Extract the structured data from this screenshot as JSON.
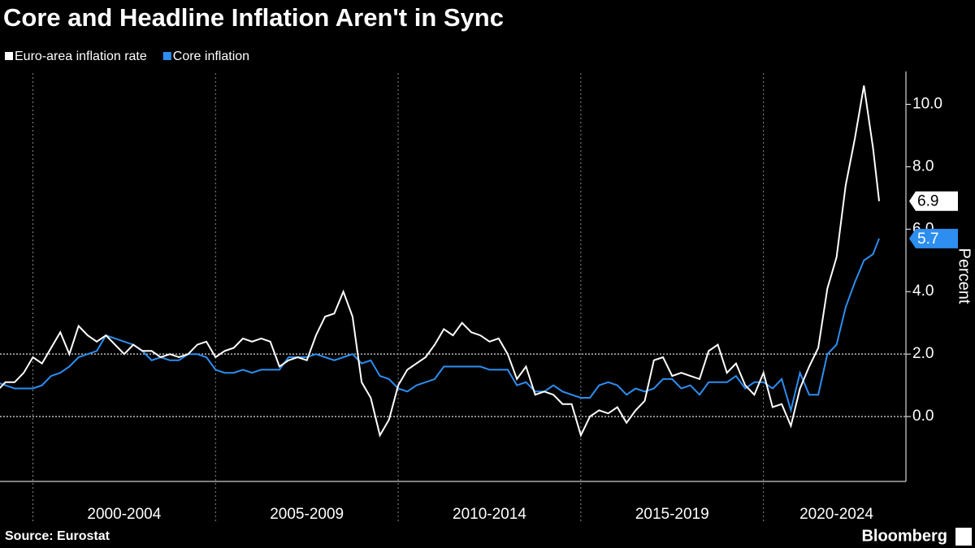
{
  "chart_data": {
    "type": "line",
    "title": "Core and Headline Inflation Aren't in Sync",
    "y_label": "Percent",
    "source": "Source: Eurostat",
    "brand": "Bloomberg",
    "x": [
      1999,
      1999.25,
      1999.5,
      1999.75,
      2000,
      2000.25,
      2000.5,
      2000.75,
      2001,
      2001.25,
      2001.5,
      2001.75,
      2002,
      2002.25,
      2002.5,
      2002.75,
      2003,
      2003.25,
      2003.5,
      2003.75,
      2004,
      2004.25,
      2004.5,
      2004.75,
      2005,
      2005.25,
      2005.5,
      2005.75,
      2006,
      2006.25,
      2006.5,
      2006.75,
      2007,
      2007.25,
      2007.5,
      2007.75,
      2008,
      2008.25,
      2008.5,
      2008.75,
      2009,
      2009.25,
      2009.5,
      2009.75,
      2010,
      2010.25,
      2010.5,
      2010.75,
      2011,
      2011.25,
      2011.5,
      2011.75,
      2012,
      2012.25,
      2012.5,
      2012.75,
      2013,
      2013.25,
      2013.5,
      2013.75,
      2014,
      2014.25,
      2014.5,
      2014.75,
      2015,
      2015.25,
      2015.5,
      2015.75,
      2016,
      2016.25,
      2016.5,
      2016.75,
      2017,
      2017.25,
      2017.5,
      2017.75,
      2018,
      2018.25,
      2018.5,
      2018.75,
      2019,
      2019.25,
      2019.5,
      2019.75,
      2020,
      2020.25,
      2020.5,
      2020.75,
      2021,
      2021.25,
      2021.5,
      2021.75,
      2022,
      2022.25,
      2022.5,
      2022.75,
      2023,
      2023.1667
    ],
    "series": [
      {
        "name": "Euro-area inflation rate",
        "color": "#ffffff",
        "values": [
          0.8,
          1.1,
          1.1,
          1.4,
          1.9,
          1.7,
          2.2,
          2.7,
          2.0,
          2.9,
          2.6,
          2.4,
          2.6,
          2.3,
          2.0,
          2.3,
          2.1,
          2.1,
          1.9,
          2.0,
          1.9,
          2.0,
          2.3,
          2.4,
          1.9,
          2.1,
          2.2,
          2.5,
          2.4,
          2.5,
          2.4,
          1.6,
          1.8,
          1.9,
          1.8,
          2.6,
          3.2,
          3.3,
          4.0,
          3.2,
          1.1,
          0.6,
          -0.6,
          -0.1,
          1.0,
          1.5,
          1.7,
          1.9,
          2.3,
          2.8,
          2.6,
          3.0,
          2.7,
          2.6,
          2.4,
          2.5,
          2.0,
          1.2,
          1.6,
          0.7,
          0.8,
          0.7,
          0.4,
          0.4,
          -0.6,
          0.0,
          0.2,
          0.1,
          0.3,
          -0.2,
          0.2,
          0.5,
          1.8,
          1.9,
          1.3,
          1.4,
          1.3,
          1.2,
          2.1,
          2.3,
          1.4,
          1.7,
          1.0,
          0.7,
          1.4,
          0.3,
          0.4,
          -0.3,
          0.9,
          1.6,
          2.2,
          4.1,
          5.1,
          7.4,
          8.9,
          10.6,
          8.6,
          6.9
        ]
      },
      {
        "name": "Core inflation",
        "color": "#2d8ef0",
        "values": [
          1.1,
          1.0,
          0.9,
          0.9,
          0.9,
          1.0,
          1.3,
          1.4,
          1.6,
          1.9,
          2.0,
          2.1,
          2.6,
          2.5,
          2.4,
          2.3,
          2.1,
          1.8,
          1.9,
          1.8,
          1.8,
          2.0,
          2.0,
          1.9,
          1.5,
          1.4,
          1.4,
          1.5,
          1.4,
          1.5,
          1.5,
          1.5,
          1.9,
          1.9,
          1.9,
          2.0,
          1.9,
          1.8,
          1.9,
          2.0,
          1.7,
          1.8,
          1.3,
          1.2,
          0.9,
          0.8,
          1.0,
          1.1,
          1.2,
          1.6,
          1.6,
          1.6,
          1.6,
          1.6,
          1.5,
          1.5,
          1.5,
          1.0,
          1.1,
          0.8,
          0.8,
          1.0,
          0.8,
          0.7,
          0.6,
          0.6,
          1.0,
          1.1,
          1.0,
          0.7,
          0.9,
          0.8,
          0.9,
          1.2,
          1.2,
          0.9,
          1.0,
          0.7,
          1.1,
          1.1,
          1.1,
          1.3,
          0.9,
          1.1,
          1.1,
          0.9,
          1.2,
          0.2,
          1.4,
          0.7,
          0.7,
          2.0,
          2.3,
          3.5,
          4.3,
          5.0,
          5.2,
          5.7
        ]
      }
    ],
    "xlim": [
      1999.1,
      2023.9
    ],
    "periods": [
      {
        "label": "2000-2004",
        "start": 2000,
        "end": 2005
      },
      {
        "label": "2005-2009",
        "start": 2005,
        "end": 2010
      },
      {
        "label": "2010-2014",
        "start": 2010,
        "end": 2015
      },
      {
        "label": "2015-2019",
        "start": 2015,
        "end": 2020
      },
      {
        "label": "2020-2024",
        "start": 2020,
        "end": 2025
      }
    ],
    "ylim": [
      -2,
      11
    ],
    "yticks": [
      {
        "value": 0,
        "label": "0.0"
      },
      {
        "value": 2,
        "label": "2.0"
      },
      {
        "value": 4,
        "label": "4.0"
      },
      {
        "value": 6,
        "label": "6.0"
      },
      {
        "value": 8,
        "label": "8.0"
      },
      {
        "value": 10,
        "label": "10.0"
      }
    ],
    "hlines": [
      0,
      2
    ]
  }
}
